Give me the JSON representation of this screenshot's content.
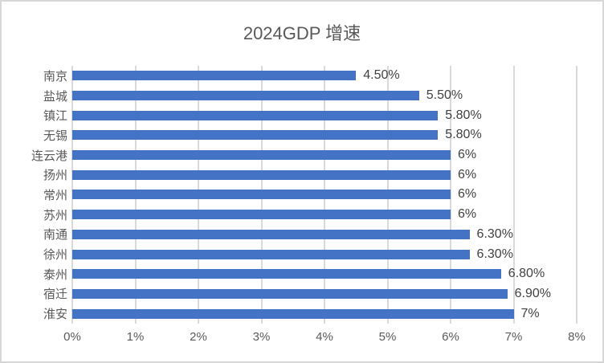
{
  "chart_data": {
    "type": "bar",
    "orientation": "horizontal",
    "title": "2024GDP 增速",
    "categories": [
      "南京",
      "盐城",
      "镇江",
      "无锡",
      "连云港",
      "扬州",
      "常州",
      "苏州",
      "南通",
      "徐州",
      "泰州",
      "宿迁",
      "淮安"
    ],
    "values": [
      4.5,
      5.5,
      5.8,
      5.8,
      6,
      6,
      6,
      6,
      6.3,
      6.3,
      6.8,
      6.9,
      7
    ],
    "value_labels": [
      "4.50%",
      "5.50%",
      "5.80%",
      "5.80%",
      "6%",
      "6%",
      "6%",
      "6%",
      "6.30%",
      "6.30%",
      "6.80%",
      "6.90%",
      "7%"
    ],
    "x_ticks": [
      "0%",
      "1%",
      "2%",
      "3%",
      "4%",
      "5%",
      "6%",
      "7%",
      "8%"
    ],
    "xlim": [
      0,
      8
    ],
    "grid": true,
    "legend": false,
    "bar_color": "#4472C4",
    "gridline_color": "#D9D9D9",
    "title_color": "#595959",
    "axis_label_color": "#595959",
    "data_label_color": "#404040"
  }
}
